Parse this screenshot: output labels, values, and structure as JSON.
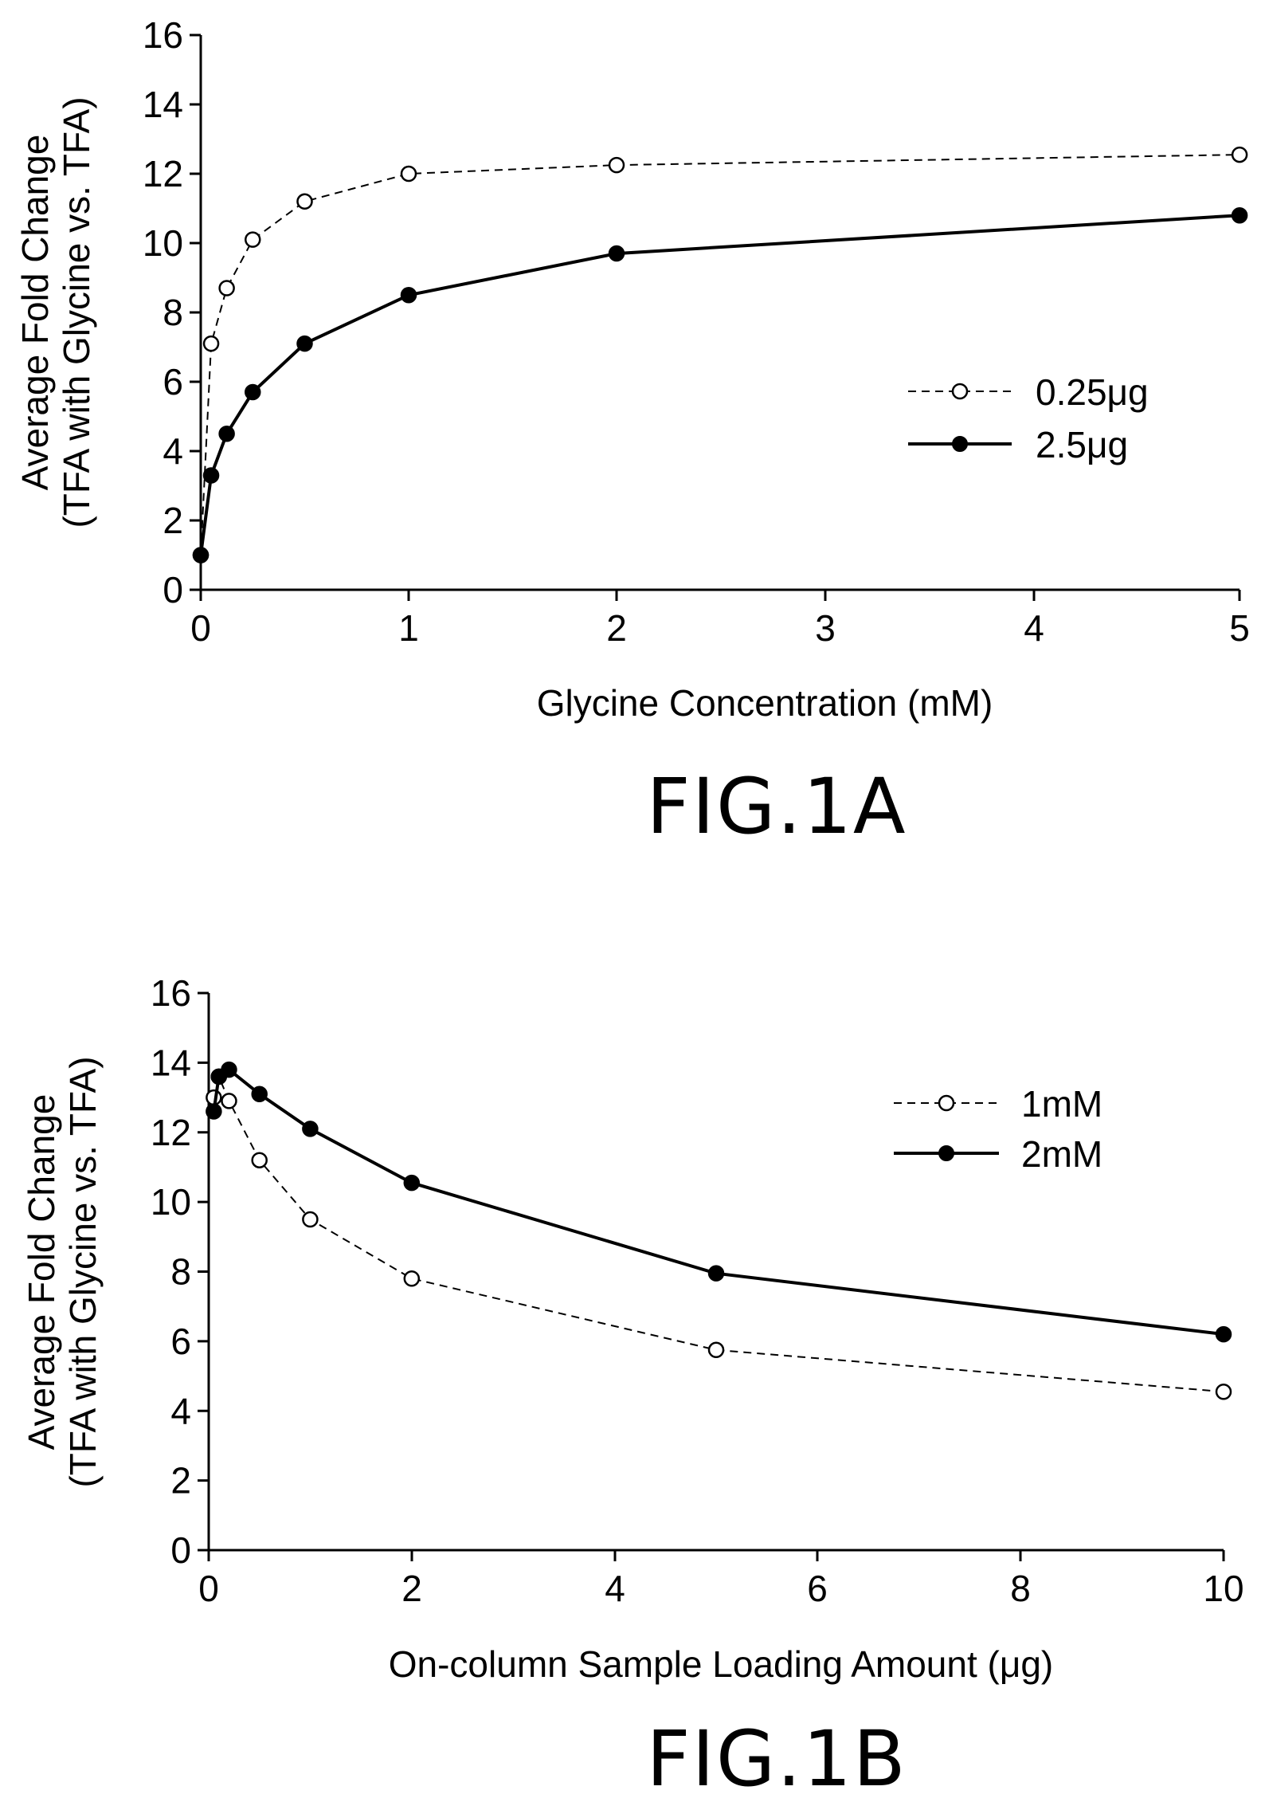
{
  "chart_data": [
    {
      "type": "line",
      "caption": "FIG.1A",
      "xlabel": "Glycine Concentration (mM)",
      "ylabel": [
        "Average Fold Change",
        "(TFA with Glycine vs. TFA)"
      ],
      "x_ticks": [
        "0",
        "1",
        "2",
        "3",
        "4",
        "5"
      ],
      "y_ticks": [
        "0",
        "2",
        "4",
        "6",
        "8",
        "10",
        "12",
        "14",
        "16"
      ],
      "ylim": [
        0,
        16
      ],
      "x_note": "x axis is non-linear: 0 to 1 and 1 to 2 mM span the same width as each later 1 mM step",
      "grid": false,
      "legend_position": "right",
      "series": [
        {
          "name": "0.25μg",
          "style": "dashed line, open circle markers",
          "x": [
            0,
            0.05,
            0.125,
            0.25,
            0.5,
            1,
            2,
            5
          ],
          "y": [
            1.0,
            7.1,
            8.7,
            10.1,
            11.2,
            12.0,
            12.25,
            12.55
          ]
        },
        {
          "name": "2.5μg",
          "style": "solid line, filled circle markers",
          "x": [
            0,
            0.05,
            0.125,
            0.25,
            0.5,
            1,
            2,
            5
          ],
          "y": [
            1.0,
            3.3,
            4.5,
            5.7,
            7.1,
            8.5,
            9.7,
            10.8
          ]
        }
      ]
    },
    {
      "type": "line",
      "caption": "FIG.1B",
      "xlabel": "On-column Sample Loading Amount (μg)",
      "ylabel": [
        "Average Fold Change",
        "(TFA with Glycine vs. TFA)"
      ],
      "x_ticks": [
        "0",
        "2",
        "4",
        "6",
        "8",
        "10"
      ],
      "y_ticks": [
        "0",
        "2",
        "4",
        "6",
        "8",
        "10",
        "12",
        "14",
        "16"
      ],
      "xlim": [
        0,
        10
      ],
      "ylim": [
        0,
        16
      ],
      "grid": false,
      "legend_position": "top-right",
      "series": [
        {
          "name": "1mM",
          "style": "dashed line, open circle markers",
          "x": [
            0.05,
            0.1,
            0.2,
            0.5,
            1,
            2,
            5,
            10
          ],
          "y": [
            13.0,
            13.6,
            12.9,
            11.2,
            9.5,
            7.8,
            5.75,
            4.55
          ]
        },
        {
          "name": "2mM",
          "style": "solid line, filled circle markers",
          "x": [
            0.05,
            0.1,
            0.2,
            0.5,
            1,
            2,
            5,
            10
          ],
          "y": [
            12.6,
            13.6,
            13.8,
            13.1,
            12.1,
            10.55,
            7.95,
            6.2
          ]
        }
      ]
    }
  ]
}
